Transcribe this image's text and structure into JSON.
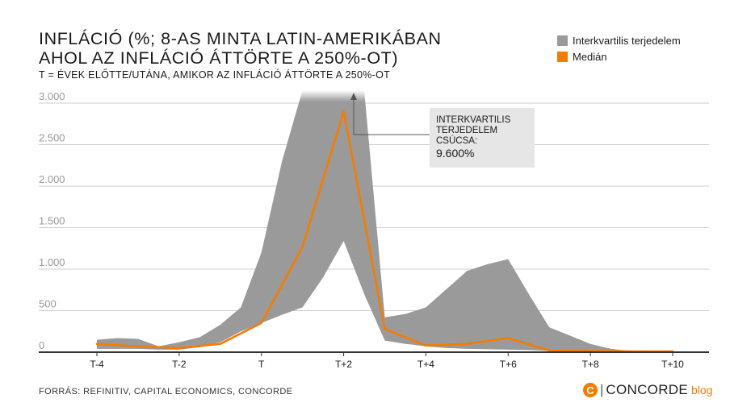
{
  "header": {
    "title_line1": "INFLÁCIÓ (%; 8-AS MINTA LATIN-AMERIKÁBAN",
    "title_line2": "AHOL AZ INFLÁCIÓ ÁTTÖRTE A 250%-OT)",
    "subtitle": "T = ÉVEK ELŐTTE/UTÁNA, AMIKOR AZ INFLÁCIÓ ÁTTÖRTE A 250%-OT"
  },
  "legend": {
    "items": [
      {
        "label": "Interkvartilis terjedelem",
        "color": "#9a9a9a"
      },
      {
        "label": "Medián",
        "color": "#f47c00"
      }
    ]
  },
  "annotation": {
    "lines": [
      "INTERKVARTILIS",
      "TERJEDELEM",
      "CSÚCSA:"
    ],
    "value": "9.600%"
  },
  "footer": {
    "source": "FORRÁS: REFINITIV, CAPITAL ECONOMICS, CONCORDE",
    "brand_icon": "C",
    "brand_name": "CONCORDE",
    "brand_blog": "blog"
  },
  "chart_data": {
    "type": "area",
    "ylim": [
      0,
      3000
    ],
    "yticks": [
      0,
      500,
      1000,
      1500,
      2000,
      2500,
      3000
    ],
    "ytick_labels": [
      "0",
      "500",
      "1.000",
      "1.500",
      "2.000",
      "2.500",
      "3.000"
    ],
    "xlim": [
      -4,
      10
    ],
    "xticks": [
      -4,
      -2,
      0,
      2,
      4,
      6,
      8,
      10
    ],
    "xtick_labels": [
      "T-4",
      "T-2",
      "T",
      "T+2",
      "T+4",
      "T+6",
      "T+8",
      "T+10"
    ],
    "grid": true,
    "legend_position": "top-right",
    "colors": {
      "band": "#9a9a9a",
      "median": "#f47c00",
      "grid": "#cccccc",
      "axis": "#333333"
    },
    "series": [
      {
        "name": "Interkvartilis terjedelem",
        "kind": "band",
        "x": [
          -4,
          -3.5,
          -3,
          -2.5,
          -2,
          -1.5,
          -1,
          -0.5,
          0,
          0.5,
          1,
          1.5,
          2,
          2.5,
          3,
          3.5,
          4,
          4.5,
          5,
          5.5,
          6,
          6.5,
          7,
          7.5,
          8,
          8.5,
          9,
          9.5,
          10
        ],
        "upper": [
          150,
          170,
          160,
          70,
          120,
          180,
          330,
          540,
          1200,
          2300,
          9600,
          9600,
          9600,
          9600,
          420,
          460,
          540,
          760,
          980,
          1060,
          1120,
          700,
          300,
          200,
          100,
          40,
          15,
          10,
          8
        ],
        "lower": [
          40,
          40,
          40,
          30,
          30,
          60,
          120,
          250,
          350,
          450,
          540,
          900,
          1340,
          700,
          140,
          100,
          70,
          50,
          40,
          35,
          30,
          25,
          15,
          10,
          6,
          4,
          3,
          2,
          2
        ]
      },
      {
        "name": "Medián",
        "kind": "line",
        "x": [
          -4,
          -3,
          -2,
          -1,
          0,
          1,
          2,
          3,
          4,
          5,
          6,
          7,
          8,
          9,
          10
        ],
        "values": [
          100,
          70,
          50,
          100,
          350,
          1270,
          2900,
          280,
          80,
          100,
          170,
          20,
          15,
          10,
          10
        ]
      }
    ]
  }
}
